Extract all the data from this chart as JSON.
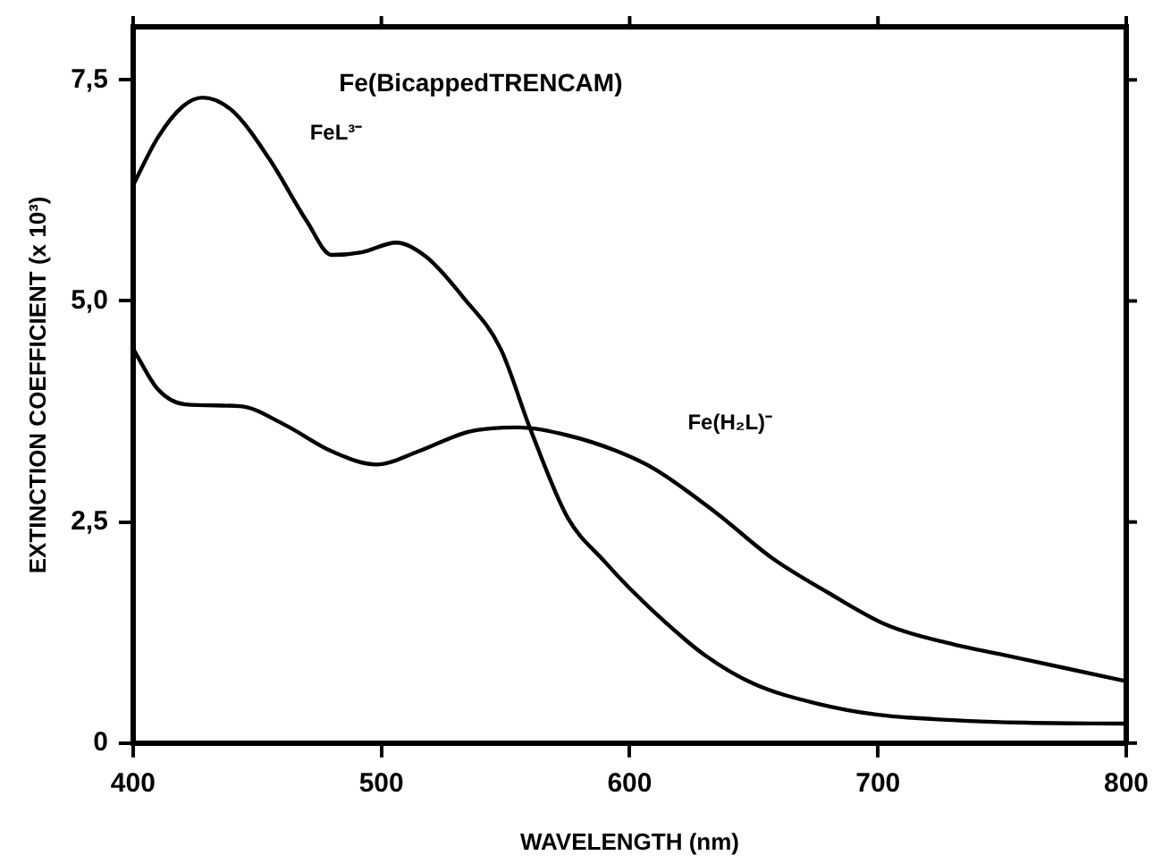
{
  "chart_data": {
    "type": "line",
    "title": "Fe(BicappedTRENCAM)",
    "xlabel": "WAVELENGTH (nm)",
    "ylabel": "EXTINCTION COEFFICIENT (x 10³)",
    "xlim": [
      400,
      800
    ],
    "xticks": [
      400,
      500,
      600,
      700,
      800
    ],
    "ylim": [
      0,
      8.1
    ],
    "yticks": [
      {
        "value": 0,
        "label": "0"
      },
      {
        "value": 2.5,
        "label": "2,5"
      },
      {
        "value": 5,
        "label": "5,0"
      },
      {
        "value": 7.5,
        "label": "7,5"
      }
    ],
    "grid": false,
    "legend": false,
    "marker": "none",
    "line_style": "solid",
    "series": [
      {
        "name": "FeL³⁻",
        "color": "#000000",
        "x": [
          400,
          410,
          420,
          428,
          440,
          455,
          470,
          480,
          492,
          506,
          518,
          533,
          548,
          560,
          575,
          590,
          600,
          615,
          630,
          650,
          675,
          700,
          730,
          760,
          800
        ],
        "values": [
          6.31,
          6.85,
          7.2,
          7.3,
          7.15,
          6.6,
          5.9,
          5.52,
          5.55,
          5.66,
          5.5,
          5.04,
          4.46,
          3.55,
          2.55,
          2.05,
          1.75,
          1.35,
          1.0,
          0.67,
          0.45,
          0.32,
          0.26,
          0.23,
          0.22
        ]
      },
      {
        "name": "Fe(H₂L)⁻",
        "color": "#000000",
        "x": [
          400,
          410,
          421,
          443,
          461,
          480,
          498,
          515,
          535,
          555,
          575,
          595,
          610,
          635,
          657,
          680,
          704,
          730,
          750,
          775,
          800
        ],
        "values": [
          4.46,
          4.0,
          3.83,
          3.81,
          3.6,
          3.3,
          3.15,
          3.3,
          3.52,
          3.57,
          3.48,
          3.3,
          3.1,
          2.6,
          2.1,
          1.7,
          1.33,
          1.12,
          1.0,
          0.85,
          0.7
        ]
      }
    ]
  }
}
